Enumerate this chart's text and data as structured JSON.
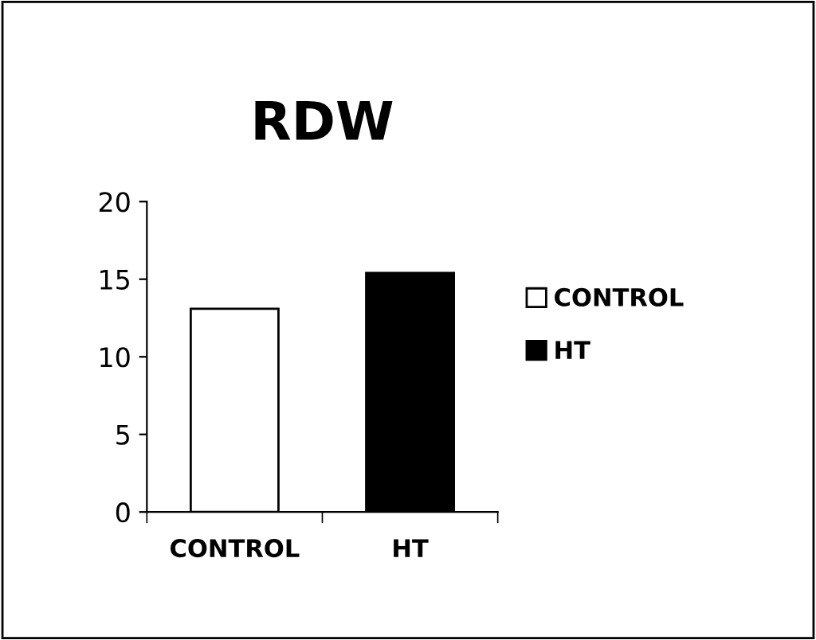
{
  "chart_data": {
    "type": "bar",
    "title": "RDW",
    "categories": [
      "CONTROL",
      "HT"
    ],
    "series": [
      {
        "name": "CONTROL",
        "color": "#ffffff",
        "values": [
          13.1,
          null
        ]
      },
      {
        "name": "HT",
        "color": "#000000",
        "values": [
          null,
          15.4
        ]
      }
    ],
    "ylim": [
      0,
      20
    ],
    "yticks": [
      0,
      5,
      10,
      15,
      20
    ],
    "grid": false,
    "legend": "right"
  }
}
